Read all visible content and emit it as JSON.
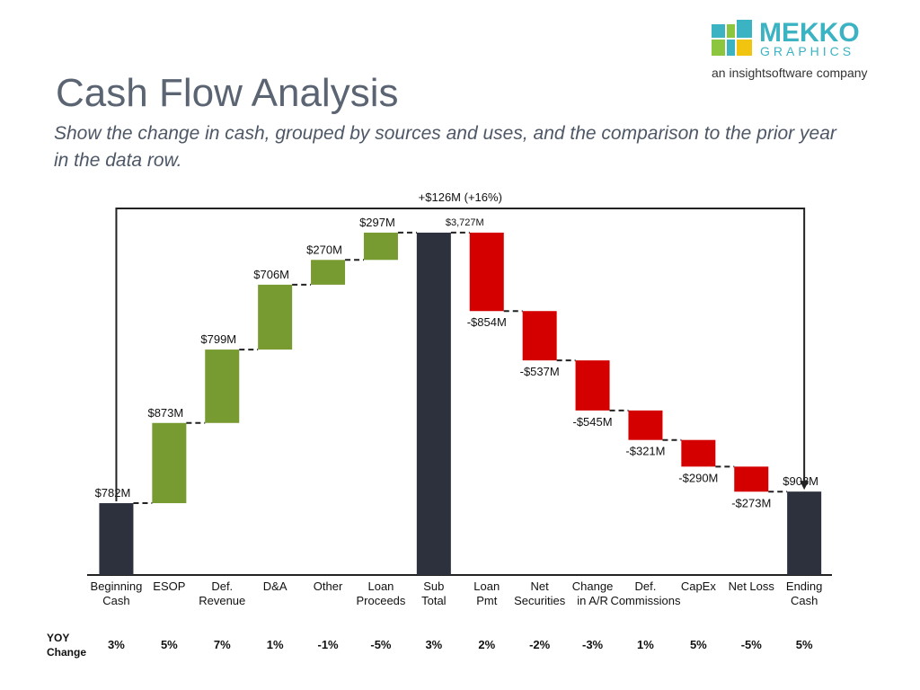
{
  "logo": {
    "name": "MEKKO",
    "sub": "GRAPHICS",
    "tagline": "an insightsoftware company"
  },
  "chart_data": {
    "type": "waterfall",
    "title": "Cash Flow Analysis",
    "subtitle": "Show the change in cash, grouped by sources and uses, and the comparison to the prior year in the data row.",
    "categories": [
      "Beginning\nCash",
      "ESOP",
      "Def.\nRevenue",
      "D&A",
      "Other",
      "Loan\nProceeds",
      "Sub\nTotal",
      "Loan\nPmt",
      "Net\nSecurities",
      "Change\nin A/R",
      "Def.\nCommissions",
      "CapEx",
      "Net Loss",
      "Ending\nCash"
    ],
    "values": [
      782,
      873,
      799,
      706,
      270,
      297,
      3727,
      -854,
      -537,
      -545,
      -321,
      -290,
      -273,
      908
    ],
    "value_labels": [
      "$782M",
      "$873M",
      "$799M",
      "$706M",
      "$270M",
      "$297M",
      "$3,727M",
      "-$854M",
      "-$537M",
      "-$545M",
      "-$321M",
      "-$290M",
      "-$273M",
      "$908M"
    ],
    "totals": [
      0,
      6,
      13
    ],
    "colors": {
      "total": "#2d303d",
      "increase": "#779a31",
      "decrease": "#d40000"
    },
    "ylim": [
      0,
      4000
    ],
    "annotation": "+$126M (+16%)",
    "yoy": {
      "label": "YOY\nChange",
      "values": [
        3,
        5,
        7,
        1,
        -1,
        -5,
        3,
        2,
        -2,
        -3,
        1,
        5,
        -5,
        5
      ],
      "value_labels": [
        "3%",
        "5%",
        "7%",
        "1%",
        "-1%",
        "-5%",
        "3%",
        "2%",
        "-2%",
        "-3%",
        "1%",
        "5%",
        "-5%",
        "5%"
      ]
    }
  }
}
